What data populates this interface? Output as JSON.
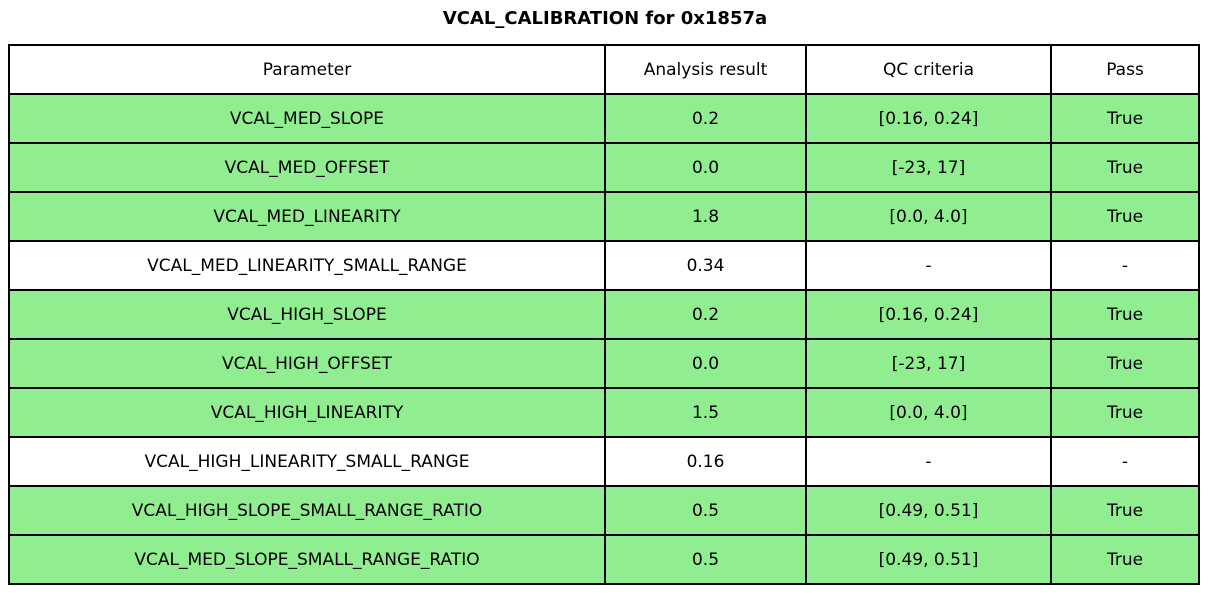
{
  "title": "VCAL_CALIBRATION for 0x1857a",
  "colors": {
    "pass_row_green": "#90ee90",
    "neutral_row_white": "#ffffff",
    "border": "#000000",
    "text": "#000000",
    "background": "#ffffff"
  },
  "table": {
    "headers": [
      "Parameter",
      "Analysis result",
      "QC criteria",
      "Pass"
    ],
    "rows": [
      {
        "parameter": "VCAL_MED_SLOPE",
        "analysis_result": "0.2",
        "qc_criteria": "[0.16, 0.24]",
        "pass": "True",
        "highlight": true
      },
      {
        "parameter": "VCAL_MED_OFFSET",
        "analysis_result": "0.0",
        "qc_criteria": "[-23, 17]",
        "pass": "True",
        "highlight": true
      },
      {
        "parameter": "VCAL_MED_LINEARITY",
        "analysis_result": "1.8",
        "qc_criteria": "[0.0, 4.0]",
        "pass": "True",
        "highlight": true
      },
      {
        "parameter": "VCAL_MED_LINEARITY_SMALL_RANGE",
        "analysis_result": "0.34",
        "qc_criteria": "-",
        "pass": "-",
        "highlight": false
      },
      {
        "parameter": "VCAL_HIGH_SLOPE",
        "analysis_result": "0.2",
        "qc_criteria": "[0.16, 0.24]",
        "pass": "True",
        "highlight": true
      },
      {
        "parameter": "VCAL_HIGH_OFFSET",
        "analysis_result": "0.0",
        "qc_criteria": "[-23, 17]",
        "pass": "True",
        "highlight": true
      },
      {
        "parameter": "VCAL_HIGH_LINEARITY",
        "analysis_result": "1.5",
        "qc_criteria": "[0.0, 4.0]",
        "pass": "True",
        "highlight": true
      },
      {
        "parameter": "VCAL_HIGH_LINEARITY_SMALL_RANGE",
        "analysis_result": "0.16",
        "qc_criteria": "-",
        "pass": "-",
        "highlight": false
      },
      {
        "parameter": "VCAL_HIGH_SLOPE_SMALL_RANGE_RATIO",
        "analysis_result": "0.5",
        "qc_criteria": "[0.49, 0.51]",
        "pass": "True",
        "highlight": true
      },
      {
        "parameter": "VCAL_MED_SLOPE_SMALL_RANGE_RATIO",
        "analysis_result": "0.5",
        "qc_criteria": "[0.49, 0.51]",
        "pass": "True",
        "highlight": true
      }
    ]
  },
  "chart_data": {
    "type": "table",
    "title": "VCAL_CALIBRATION for 0x1857a",
    "columns": [
      "Parameter",
      "Analysis result",
      "QC criteria",
      "Pass"
    ],
    "rows": [
      [
        "VCAL_MED_SLOPE",
        "0.2",
        "[0.16, 0.24]",
        "True"
      ],
      [
        "VCAL_MED_OFFSET",
        "0.0",
        "[-23, 17]",
        "True"
      ],
      [
        "VCAL_MED_LINEARITY",
        "1.8",
        "[0.0, 4.0]",
        "True"
      ],
      [
        "VCAL_MED_LINEARITY_SMALL_RANGE",
        "0.34",
        "-",
        "-"
      ],
      [
        "VCAL_HIGH_SLOPE",
        "0.2",
        "[0.16, 0.24]",
        "True"
      ],
      [
        "VCAL_HIGH_OFFSET",
        "0.0",
        "[-23, 17]",
        "True"
      ],
      [
        "VCAL_HIGH_LINEARITY",
        "1.5",
        "[0.0, 4.0]",
        "True"
      ],
      [
        "VCAL_HIGH_LINEARITY_SMALL_RANGE",
        "0.16",
        "-",
        "-"
      ],
      [
        "VCAL_HIGH_SLOPE_SMALL_RANGE_RATIO",
        "0.5",
        "[0.49, 0.51]",
        "True"
      ],
      [
        "VCAL_MED_SLOPE_SMALL_RANGE_RATIO",
        "0.5",
        "[0.49, 0.51]",
        "True"
      ]
    ],
    "highlighted_row_indices": [
      0,
      1,
      2,
      4,
      5,
      6,
      8,
      9
    ],
    "highlight_color": "#90ee90",
    "layout": "title centered above full-width bordered table, black gridlines"
  }
}
